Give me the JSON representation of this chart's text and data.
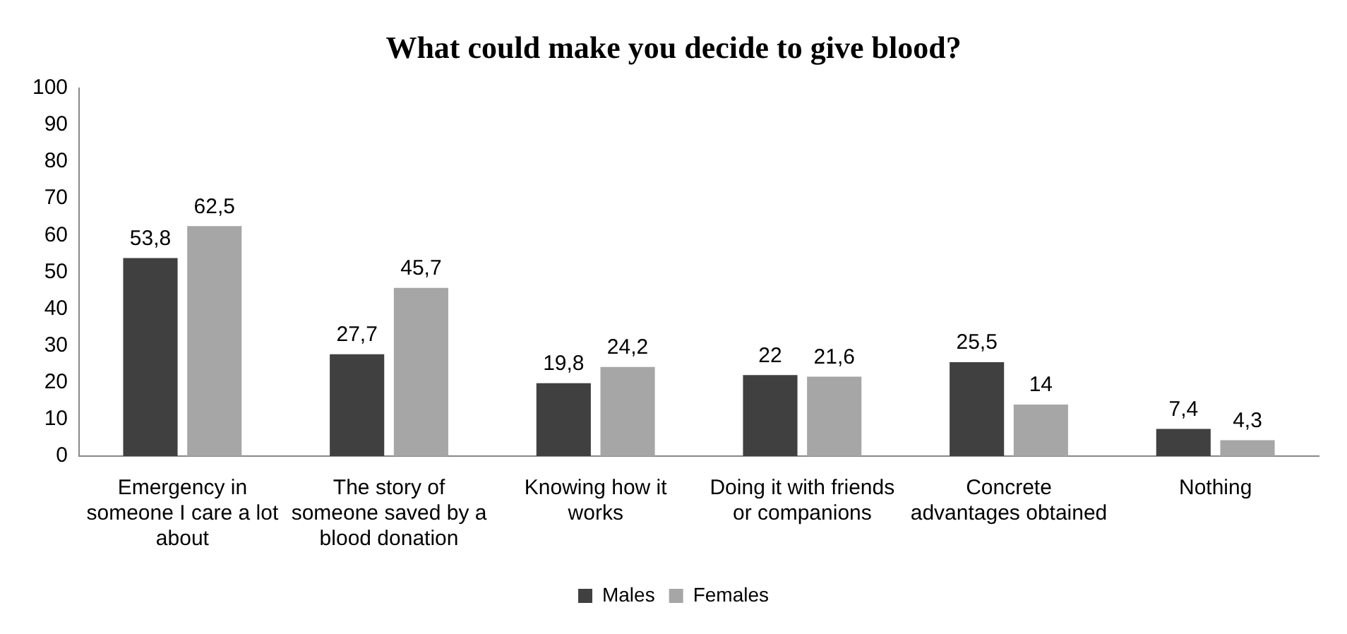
{
  "chart_data": {
    "type": "bar",
    "title": "What could make you decide to give blood?",
    "categories": [
      "Emergency in someone I care a lot about",
      "The story of someone saved by a blood donation",
      "Knowing how it works",
      "Doing it with friends or companions",
      "Concrete advantages obtained",
      "Nothing"
    ],
    "series": [
      {
        "name": "Males",
        "color": "#404040",
        "values": [
          53.8,
          27.7,
          19.8,
          22,
          25.5,
          7.4
        ],
        "value_labels": [
          "53,8",
          "27,7",
          "19,8",
          "22",
          "25,5",
          "7,4"
        ]
      },
      {
        "name": "Females",
        "color": "#a6a6a6",
        "values": [
          62.5,
          45.7,
          24.2,
          21.6,
          14,
          4.3
        ],
        "value_labels": [
          "62,5",
          "45,7",
          "24,2",
          "21,6",
          "14",
          "4,3"
        ]
      }
    ],
    "ylim": [
      0,
      100
    ],
    "yticks": [
      0,
      10,
      20,
      30,
      40,
      50,
      60,
      70,
      80,
      90,
      100
    ],
    "grid": false,
    "legend": "bottom"
  }
}
